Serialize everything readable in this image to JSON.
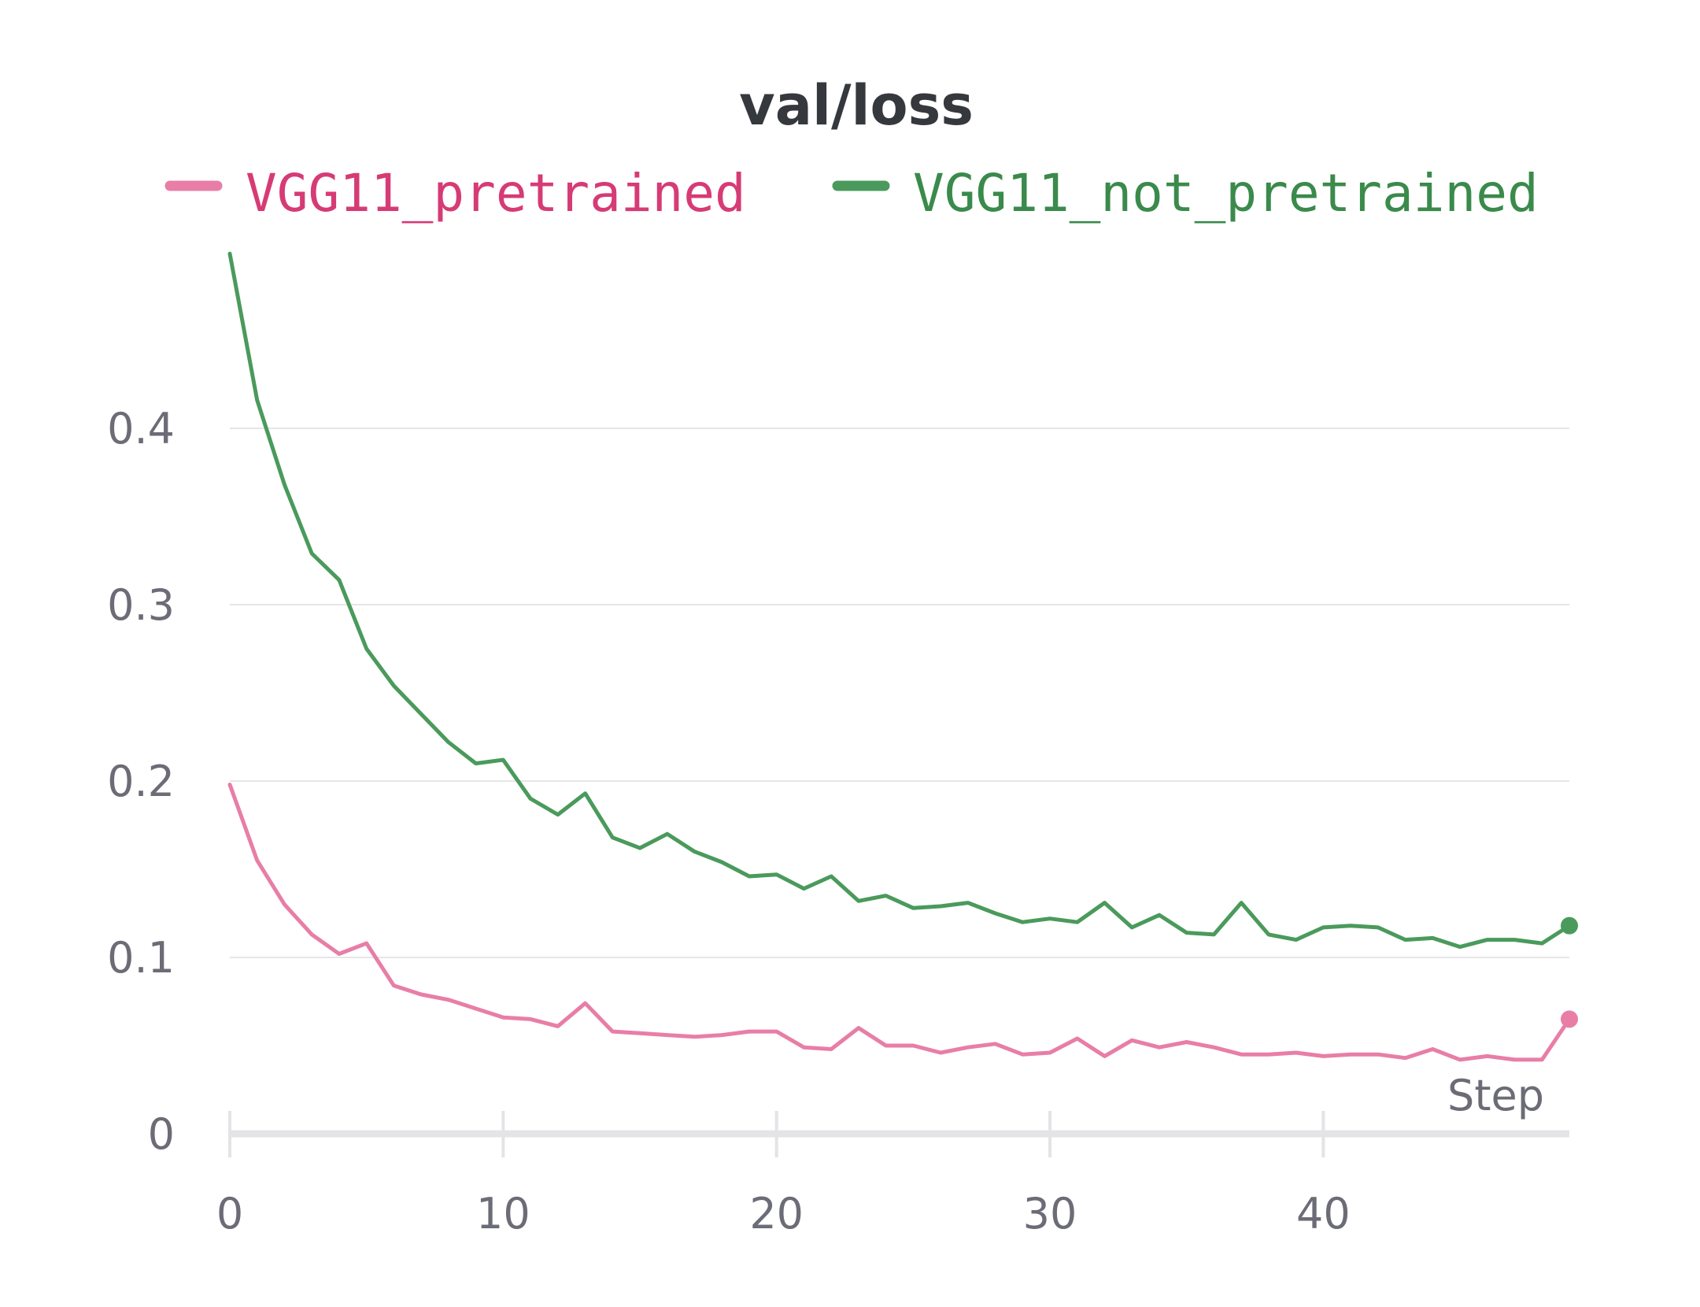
{
  "chart_data": {
    "type": "line",
    "title": "val/loss",
    "xlabel": "Step",
    "ylabel": "",
    "xlim": [
      0,
      49
    ],
    "ylim": [
      0,
      0.5
    ],
    "xticks": [
      0,
      10,
      20,
      30,
      40
    ],
    "yticks": [
      0,
      0.1,
      0.2,
      0.3,
      0.4
    ],
    "xtick_labels": [
      "0",
      "10",
      "20",
      "30",
      "40"
    ],
    "ytick_labels": [
      "0",
      "0.1",
      "0.2",
      "0.3",
      "0.4"
    ],
    "grid": true,
    "legend_position": "top",
    "series": [
      {
        "name": "VGG11_pretrained",
        "color": "#e87ea6",
        "label_color": "#d63b76",
        "x": [
          0,
          1,
          2,
          3,
          4,
          5,
          6,
          7,
          8,
          9,
          10,
          11,
          12,
          13,
          14,
          15,
          16,
          17,
          18,
          19,
          20,
          21,
          22,
          23,
          24,
          25,
          26,
          27,
          28,
          29,
          30,
          31,
          32,
          33,
          34,
          35,
          36,
          37,
          38,
          39,
          40,
          41,
          42,
          43,
          44,
          45,
          46,
          47,
          48,
          49
        ],
        "values": [
          0.198,
          0.155,
          0.13,
          0.113,
          0.102,
          0.108,
          0.084,
          0.079,
          0.076,
          0.071,
          0.066,
          0.065,
          0.061,
          0.074,
          0.058,
          0.057,
          0.056,
          0.055,
          0.056,
          0.058,
          0.058,
          0.049,
          0.048,
          0.06,
          0.05,
          0.05,
          0.046,
          0.049,
          0.051,
          0.045,
          0.046,
          0.054,
          0.044,
          0.053,
          0.049,
          0.052,
          0.049,
          0.045,
          0.045,
          0.046,
          0.044,
          0.045,
          0.045,
          0.043,
          0.048,
          0.042,
          0.044,
          0.042,
          0.042,
          0.065
        ]
      },
      {
        "name": "VGG11_not_pretrained",
        "color": "#4a9a5c",
        "label_color": "#3a8a4c",
        "x": [
          0,
          1,
          2,
          3,
          4,
          5,
          6,
          7,
          8,
          9,
          10,
          11,
          12,
          13,
          14,
          15,
          16,
          17,
          18,
          19,
          20,
          21,
          22,
          23,
          24,
          25,
          26,
          27,
          28,
          29,
          30,
          31,
          32,
          33,
          34,
          35,
          36,
          37,
          38,
          39,
          40,
          41,
          42,
          43,
          44,
          45,
          46,
          47,
          48,
          49
        ],
        "values": [
          0.499,
          0.416,
          0.368,
          0.329,
          0.314,
          0.275,
          0.254,
          0.238,
          0.222,
          0.21,
          0.212,
          0.19,
          0.181,
          0.193,
          0.168,
          0.162,
          0.17,
          0.16,
          0.154,
          0.146,
          0.147,
          0.139,
          0.146,
          0.132,
          0.135,
          0.128,
          0.129,
          0.131,
          0.125,
          0.12,
          0.122,
          0.12,
          0.131,
          0.117,
          0.124,
          0.114,
          0.113,
          0.131,
          0.113,
          0.11,
          0.117,
          0.118,
          0.117,
          0.11,
          0.111,
          0.106,
          0.11,
          0.11,
          0.108,
          0.118
        ]
      }
    ]
  }
}
